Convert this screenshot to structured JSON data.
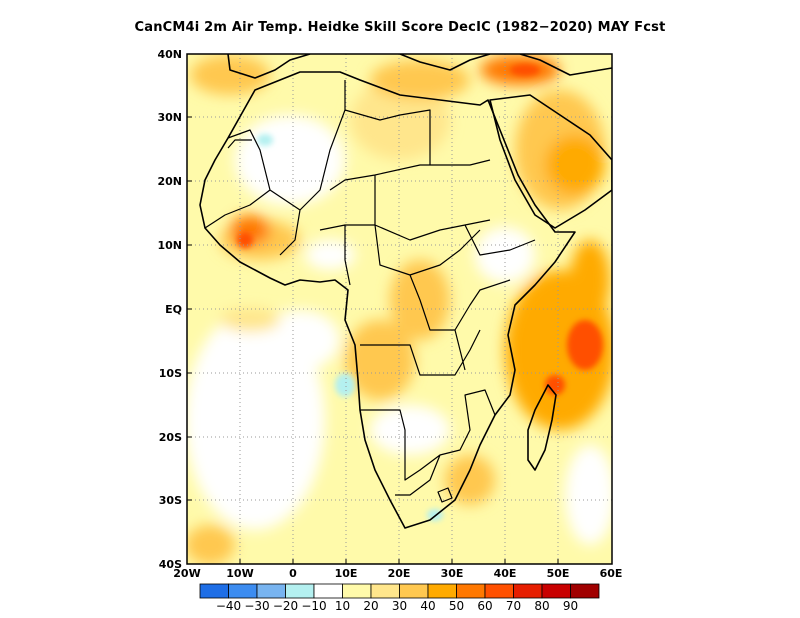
{
  "title": "CanCM4i  2m Air Temp. Heidke Skill Score DecIC (1982−2020) MAY Fcst",
  "map": {
    "lon_range": [
      -20,
      60
    ],
    "lat_range": [
      -40,
      40
    ],
    "lat_ticks": [
      "40N",
      "30N",
      "20N",
      "10N",
      "EQ",
      "10S",
      "20S",
      "30S",
      "40S"
    ],
    "lon_ticks": [
      "20W",
      "10W",
      "0",
      "10E",
      "20E",
      "30E",
      "40E",
      "50E",
      "60E"
    ],
    "gridlines": "dotted"
  },
  "colorbar": {
    "colors": [
      "#1e6ee6",
      "#3c8cf0",
      "#78b4f0",
      "#b4f0f0",
      "#ffffff",
      "#fffaaa",
      "#ffe68c",
      "#ffc850",
      "#ffaa00",
      "#ff7800",
      "#ff5000",
      "#e61e00",
      "#c80000",
      "#a00000"
    ],
    "labels": [
      "−40",
      "−30",
      "−20",
      "−10",
      "10",
      "20",
      "30",
      "40",
      "50",
      "60",
      "70",
      "80",
      "90"
    ]
  }
}
